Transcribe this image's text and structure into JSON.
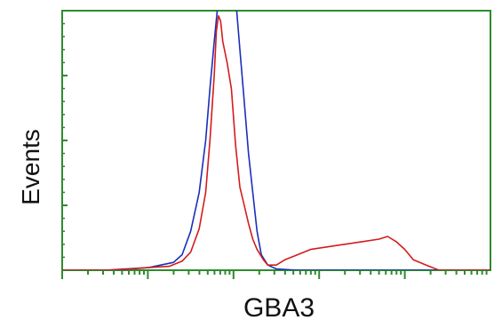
{
  "chart_data": {
    "type": "line",
    "xlabel": "GBA3",
    "ylabel": "Events",
    "x_scale": "log",
    "x_decades": 5,
    "y_major_ticks": 4,
    "grid": false,
    "series": [
      {
        "color": "#1b2fb8",
        "x_frac": [
          0.0,
          0.05,
          0.1,
          0.15,
          0.2,
          0.23,
          0.26,
          0.28,
          0.3,
          0.32,
          0.335,
          0.345,
          0.355,
          0.365,
          0.375,
          0.385,
          0.395,
          0.405,
          0.415,
          0.425,
          0.435,
          0.445,
          0.455,
          0.465,
          0.48,
          0.5,
          0.55,
          0.6,
          0.7,
          0.8,
          0.9,
          1.0
        ],
        "y_frac": [
          0.0,
          0.0,
          0.0,
          0.005,
          0.01,
          0.02,
          0.03,
          0.06,
          0.15,
          0.3,
          0.5,
          0.7,
          0.88,
          1.05,
          1.1,
          1.2,
          1.15,
          1.05,
          0.85,
          0.65,
          0.45,
          0.3,
          0.15,
          0.06,
          0.02,
          0.005,
          0.0,
          0.0,
          0.0,
          0.0,
          0.0,
          0.0
        ]
      },
      {
        "color": "#d41c1c",
        "x_frac": [
          0.0,
          0.05,
          0.1,
          0.15,
          0.2,
          0.25,
          0.28,
          0.3,
          0.32,
          0.335,
          0.345,
          0.355,
          0.36,
          0.365,
          0.37,
          0.375,
          0.385,
          0.395,
          0.405,
          0.415,
          0.425,
          0.435,
          0.445,
          0.455,
          0.47,
          0.48,
          0.5,
          0.52,
          0.55,
          0.58,
          0.62,
          0.66,
          0.7,
          0.74,
          0.76,
          0.78,
          0.8,
          0.82,
          0.85,
          0.88,
          1.0
        ],
        "y_frac": [
          0.0,
          0.0,
          0.0,
          0.003,
          0.01,
          0.015,
          0.035,
          0.07,
          0.16,
          0.3,
          0.5,
          0.75,
          0.92,
          0.98,
          0.96,
          0.88,
          0.8,
          0.7,
          0.48,
          0.32,
          0.25,
          0.18,
          0.12,
          0.08,
          0.04,
          0.02,
          0.02,
          0.04,
          0.06,
          0.08,
          0.09,
          0.1,
          0.11,
          0.12,
          0.13,
          0.11,
          0.08,
          0.04,
          0.02,
          0.0,
          0.0
        ]
      }
    ]
  }
}
